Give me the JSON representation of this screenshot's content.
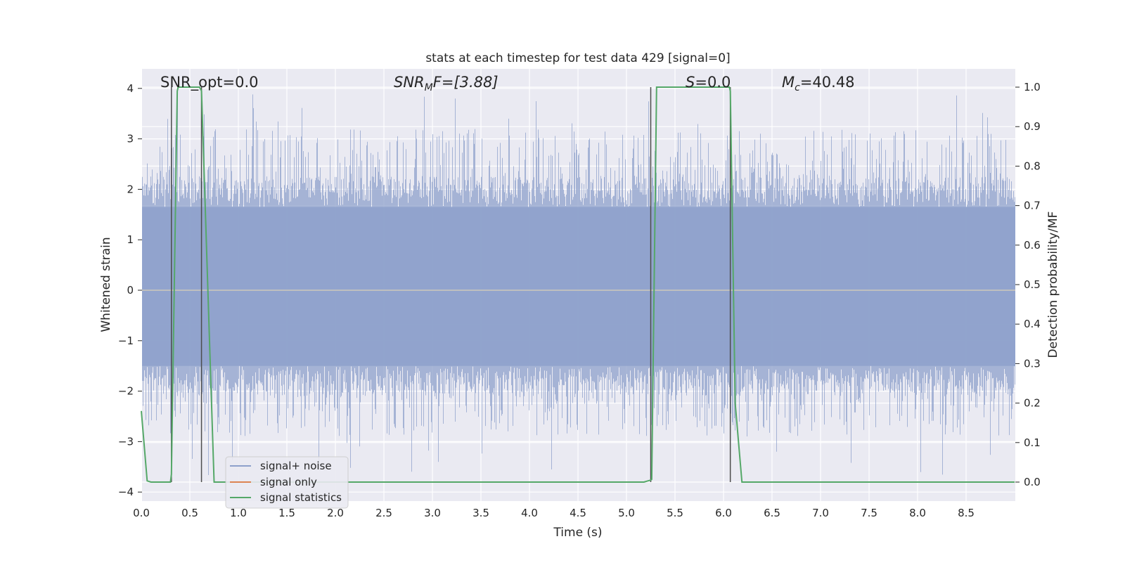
{
  "chart_data": {
    "type": "line",
    "title": "stats at each timestep for test data 429 [signal=0]",
    "xlabel": "Time (s)",
    "ylabel": "Whitened strain",
    "ylabel_right": "Detection probability/MF",
    "xlim": [
      0,
      9.0
    ],
    "ylim": [
      -4.2,
      4.4
    ],
    "ylim_right": [
      -0.05,
      1.045
    ],
    "x_ticks": [
      0.0,
      0.5,
      1.0,
      1.5,
      2.0,
      2.5,
      3.0,
      3.5,
      4.0,
      4.5,
      5.0,
      5.5,
      6.0,
      6.5,
      7.0,
      7.5,
      8.0,
      8.5
    ],
    "x_tick_labels": [
      "0.0",
      "0.5",
      "1.0",
      "1.5",
      "2.0",
      "2.5",
      "3.0",
      "3.5",
      "4.0",
      "4.5",
      "5.0",
      "5.5",
      "6.0",
      "6.5",
      "7.0",
      "7.5",
      "8.0",
      "8.5"
    ],
    "y_ticks": [
      4,
      3,
      2,
      1,
      0,
      -1,
      -2,
      -3,
      -4
    ],
    "y_tick_labels": [
      "4",
      "3",
      "2",
      "1",
      "0",
      "−1",
      "−2",
      "−3",
      "−4"
    ],
    "y_right_ticks": [
      1.0,
      0.9,
      0.8,
      0.7,
      0.6,
      0.5,
      0.4,
      0.3,
      0.2,
      0.1,
      0.0
    ],
    "y_right_tick_labels": [
      "1.0",
      "0.9",
      "0.8",
      "0.7",
      "0.6",
      "0.5",
      "0.4",
      "0.3",
      "0.2",
      "0.1",
      "0.0"
    ],
    "grid": true,
    "legend_position": "lower-left",
    "annotations": {
      "snr_opt": "SNR_opt=0.0",
      "snr_mf_main": "SNR",
      "snr_mf_sub": "M",
      "snr_mf_rest": "F=[3.88]",
      "s_main": "S",
      "s_rest": "=0.0",
      "mc_main": "M",
      "mc_sub": "c",
      "mc_rest": "=40.48"
    },
    "vertical_lines_x": [
      0.31,
      0.62,
      5.25,
      6.07
    ],
    "series": [
      {
        "name": "signal+ noise",
        "color": "#8da0cb",
        "description_values": "noise_band",
        "band_core": [
          -1.5,
          1.65
        ],
        "spike_range": [
          -3.7,
          4.0
        ]
      },
      {
        "name": "signal only",
        "color": "#dd8452",
        "values_constant": 0.0
      },
      {
        "name": "signal statistics",
        "color": "#55a868",
        "axis": "right",
        "x": [
          0.0,
          0.06,
          0.1,
          0.3,
          0.31,
          0.37,
          0.38,
          0.6,
          0.62,
          0.71,
          0.75,
          5.18,
          5.22,
          5.25,
          5.26,
          5.31,
          6.06,
          6.07,
          6.12,
          6.19,
          9.0
        ],
        "y": [
          0.18,
          0.003,
          0.0,
          0.0,
          0.02,
          0.99,
          1.0,
          1.0,
          0.99,
          0.3,
          0.0,
          0.0,
          0.003,
          0.005,
          0.007,
          1.0,
          1.0,
          0.99,
          0.2,
          0.0,
          0.0
        ]
      }
    ]
  },
  "colors": {
    "plot_background": "#eaeaf2",
    "grid": "#ffffff",
    "noise": "#8da0cb",
    "signal": "#dd8452",
    "stats": "#55a868",
    "vlines": "#4d4d4d"
  }
}
